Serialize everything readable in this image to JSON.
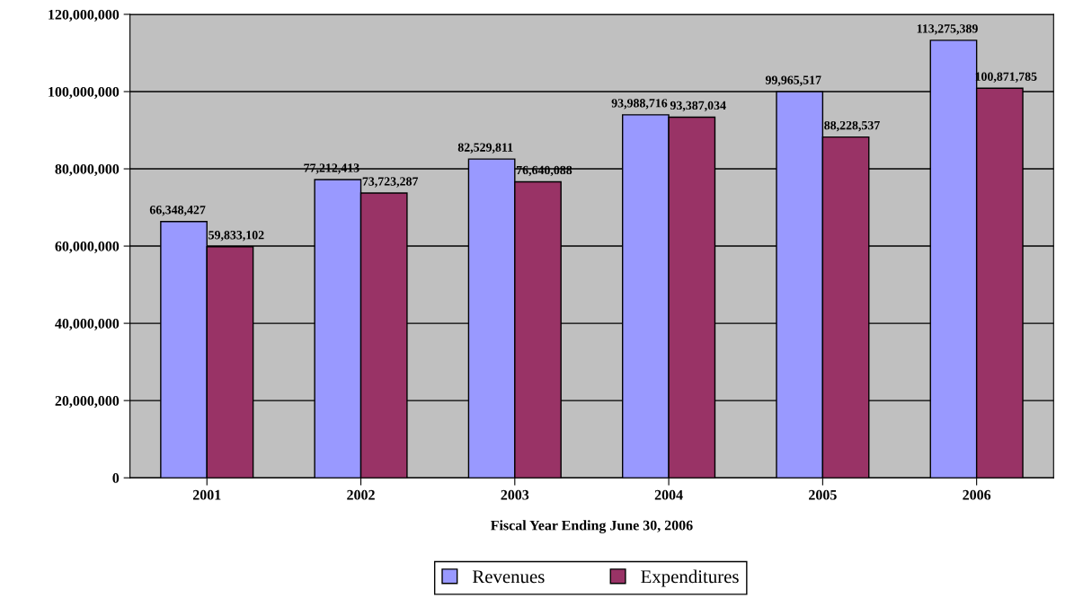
{
  "chart_data": {
    "type": "bar",
    "xlabel": "Fiscal Year Ending June 30, 2006",
    "categories": [
      "2001",
      "2002",
      "2003",
      "2004",
      "2005",
      "2006"
    ],
    "series": [
      {
        "name": "Revenues",
        "color": "#9999ff",
        "values": [
          66348427,
          77212413,
          82529811,
          93988716,
          99965517,
          113275389
        ],
        "value_labels": [
          "66,348,427",
          "77,212,413",
          "82,529,811",
          "93,988,716",
          "99,965,517",
          "113,275,389"
        ]
      },
      {
        "name": "Expenditures",
        "color": "#993366",
        "values": [
          59833102,
          73723287,
          76640088,
          93387034,
          88228537,
          100871785
        ],
        "value_labels": [
          "59,833,102",
          "73,723,287",
          "76,640,088",
          "93,387,034",
          "88,228,537",
          "100,871,785"
        ]
      }
    ],
    "ylim": [
      0,
      120000000
    ],
    "yticks": [
      0,
      {
        "value": 20000000,
        "label": "20,000,000"
      },
      {
        "value": 40000000,
        "label": "40,000,000"
      },
      {
        "value": 60000000,
        "label": "60,000,000"
      },
      {
        "value": 80000000,
        "label": "80,000,000"
      },
      {
        "value": 100000000,
        "label": "100,000,000"
      },
      {
        "value": 120000000,
        "label": "120,000,000"
      }
    ],
    "grid": "y",
    "legend": "bottom"
  }
}
